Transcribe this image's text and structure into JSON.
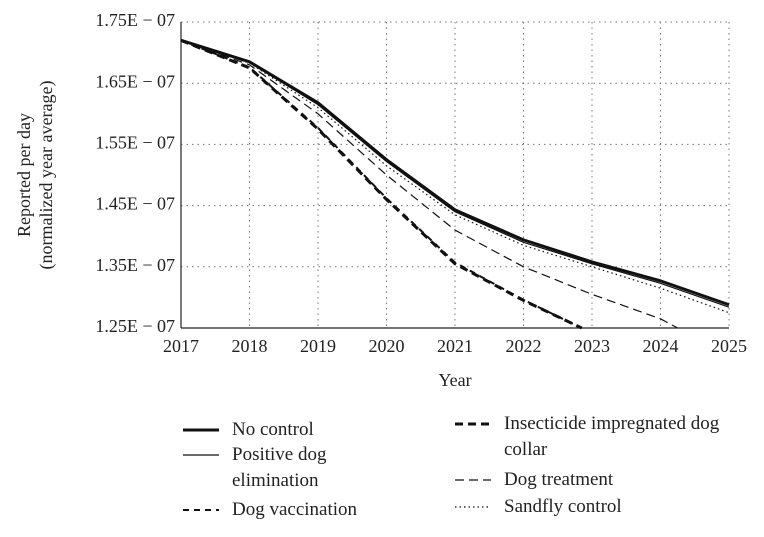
{
  "chart_data": {
    "type": "line",
    "xlabel": "Year",
    "ylabel": [
      "Reported per day",
      "(normalized year average)"
    ],
    "x": [
      2017,
      2018,
      2019,
      2020,
      2021,
      2022,
      2023,
      2024,
      2025
    ],
    "xlim": [
      2017,
      2025
    ],
    "xticks": [
      2017,
      2018,
      2019,
      2020,
      2021,
      2022,
      2023,
      2024,
      2025
    ],
    "ylim": [
      1.25e-07,
      1.75e-07
    ],
    "yticks": [
      {
        "value": 1.25e-07,
        "label": "1.25E − 07"
      },
      {
        "value": 1.35e-07,
        "label": "1.35E − 07"
      },
      {
        "value": 1.45e-07,
        "label": "1.45E − 07"
      },
      {
        "value": 1.55e-07,
        "label": "1.55E − 07"
      },
      {
        "value": 1.65e-07,
        "label": "1.65E − 07"
      },
      {
        "value": 1.75e-07,
        "label": "1.75E − 07"
      }
    ],
    "grid": true,
    "series": [
      {
        "name": "No control",
        "color": "#111111",
        "line_style": "solid",
        "line_width": 3,
        "values": [
          1.72e-07,
          1.685e-07,
          1.618e-07,
          1.525e-07,
          1.443e-07,
          1.394e-07,
          1.358e-07,
          1.327e-07,
          1.288e-07
        ]
      },
      {
        "name": "Positive dog elimination",
        "color": "#111111",
        "line_style": "solid",
        "line_width": 1.2,
        "values": [
          1.72e-07,
          1.684e-07,
          1.615e-07,
          1.522e-07,
          1.44e-07,
          1.39e-07,
          1.355e-07,
          1.323e-07,
          1.284e-07
        ]
      },
      {
        "name": "Dog vaccination",
        "color": "#111111",
        "line_style": "dashed",
        "line_width": 2,
        "x": [
          2017,
          2018,
          2019,
          2020,
          2021,
          2022,
          2022.85
        ],
        "values": [
          1.72e-07,
          1.676e-07,
          1.577e-07,
          1.462e-07,
          1.357e-07,
          1.296e-07,
          1.25e-07
        ]
      },
      {
        "name": "Insecticide impregnated dog collar",
        "color": "#111111",
        "line_style": "dashed",
        "line_width": 3,
        "x": [
          2017,
          2018,
          2019,
          2020,
          2021,
          2022,
          2022.85
        ],
        "values": [
          1.72e-07,
          1.675e-07,
          1.575e-07,
          1.46e-07,
          1.355e-07,
          1.295e-07,
          1.25e-07
        ]
      },
      {
        "name": "Dog treatment",
        "color": "#111111",
        "line_style": "dashed",
        "line_width": 1.2,
        "x": [
          2017,
          2018,
          2019,
          2020,
          2021,
          2022,
          2023,
          2024,
          2024.25
        ],
        "values": [
          1.72e-07,
          1.68e-07,
          1.6e-07,
          1.5e-07,
          1.41e-07,
          1.35e-07,
          1.305e-07,
          1.265e-07,
          1.25e-07
        ]
      },
      {
        "name": "Sandfly control",
        "color": "#111111",
        "line_style": "dotted",
        "line_width": 1.2,
        "values": [
          1.72e-07,
          1.683e-07,
          1.61e-07,
          1.515e-07,
          1.435e-07,
          1.385e-07,
          1.35e-07,
          1.315e-07,
          1.275e-07
        ]
      }
    ]
  }
}
